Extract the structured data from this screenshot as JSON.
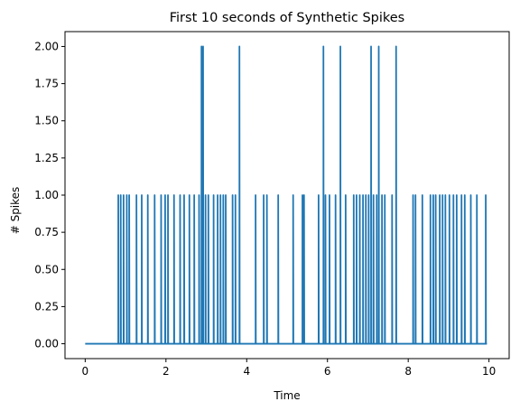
{
  "chart_data": {
    "type": "line",
    "title": "First 10 seconds of Synthetic Spikes",
    "xlabel": "Time",
    "ylabel": "# Spikes",
    "xlim": [
      -0.5,
      10.5
    ],
    "ylim": [
      -0.1,
      2.1
    ],
    "xticks": [
      0,
      2,
      4,
      6,
      8,
      10
    ],
    "xtick_labels": [
      "0",
      "2",
      "4",
      "6",
      "8",
      "10"
    ],
    "yticks": [
      0,
      0.25,
      0.5,
      0.75,
      1.0,
      1.25,
      1.5,
      1.75,
      2.0
    ],
    "ytick_labels": [
      "0.00",
      "0.25",
      "0.50",
      "0.75",
      "1.00",
      "1.25",
      "1.50",
      "1.75",
      "2.00"
    ],
    "grid": false,
    "x_range": [
      0,
      9.95
    ],
    "baseline": 0,
    "series_color": "#1f77b4",
    "spikes": [
      {
        "t": 0.82,
        "n": 1
      },
      {
        "t": 0.88,
        "n": 1
      },
      {
        "t": 0.95,
        "n": 1
      },
      {
        "t": 1.03,
        "n": 1
      },
      {
        "t": 1.09,
        "n": 1
      },
      {
        "t": 1.27,
        "n": 1
      },
      {
        "t": 1.4,
        "n": 1
      },
      {
        "t": 1.55,
        "n": 1
      },
      {
        "t": 1.72,
        "n": 1
      },
      {
        "t": 1.88,
        "n": 1
      },
      {
        "t": 1.98,
        "n": 1
      },
      {
        "t": 2.05,
        "n": 1
      },
      {
        "t": 2.2,
        "n": 1
      },
      {
        "t": 2.35,
        "n": 1
      },
      {
        "t": 2.45,
        "n": 1
      },
      {
        "t": 2.58,
        "n": 1
      },
      {
        "t": 2.7,
        "n": 1
      },
      {
        "t": 2.82,
        "n": 1
      },
      {
        "t": 2.88,
        "n": 2
      },
      {
        "t": 2.92,
        "n": 2
      },
      {
        "t": 2.98,
        "n": 1
      },
      {
        "t": 3.05,
        "n": 1
      },
      {
        "t": 3.18,
        "n": 1
      },
      {
        "t": 3.28,
        "n": 1
      },
      {
        "t": 3.35,
        "n": 1
      },
      {
        "t": 3.42,
        "n": 1
      },
      {
        "t": 3.48,
        "n": 1
      },
      {
        "t": 3.65,
        "n": 1
      },
      {
        "t": 3.72,
        "n": 1
      },
      {
        "t": 3.82,
        "n": 2
      },
      {
        "t": 4.22,
        "n": 1
      },
      {
        "t": 4.42,
        "n": 1
      },
      {
        "t": 4.5,
        "n": 1
      },
      {
        "t": 4.78,
        "n": 1
      },
      {
        "t": 5.15,
        "n": 1
      },
      {
        "t": 5.38,
        "n": 1
      },
      {
        "t": 5.42,
        "n": 1
      },
      {
        "t": 5.78,
        "n": 1
      },
      {
        "t": 5.9,
        "n": 2
      },
      {
        "t": 5.95,
        "n": 1
      },
      {
        "t": 6.05,
        "n": 1
      },
      {
        "t": 6.2,
        "n": 1
      },
      {
        "t": 6.32,
        "n": 2
      },
      {
        "t": 6.45,
        "n": 1
      },
      {
        "t": 6.65,
        "n": 1
      },
      {
        "t": 6.72,
        "n": 1
      },
      {
        "t": 6.8,
        "n": 1
      },
      {
        "t": 6.88,
        "n": 1
      },
      {
        "t": 6.95,
        "n": 1
      },
      {
        "t": 7.02,
        "n": 1
      },
      {
        "t": 7.08,
        "n": 2
      },
      {
        "t": 7.14,
        "n": 1
      },
      {
        "t": 7.22,
        "n": 1
      },
      {
        "t": 7.27,
        "n": 2
      },
      {
        "t": 7.35,
        "n": 1
      },
      {
        "t": 7.42,
        "n": 1
      },
      {
        "t": 7.6,
        "n": 1
      },
      {
        "t": 7.7,
        "n": 2
      },
      {
        "t": 8.12,
        "n": 1
      },
      {
        "t": 8.18,
        "n": 1
      },
      {
        "t": 8.35,
        "n": 1
      },
      {
        "t": 8.55,
        "n": 1
      },
      {
        "t": 8.62,
        "n": 1
      },
      {
        "t": 8.68,
        "n": 1
      },
      {
        "t": 8.78,
        "n": 1
      },
      {
        "t": 8.85,
        "n": 1
      },
      {
        "t": 8.92,
        "n": 1
      },
      {
        "t": 9.02,
        "n": 1
      },
      {
        "t": 9.12,
        "n": 1
      },
      {
        "t": 9.2,
        "n": 1
      },
      {
        "t": 9.32,
        "n": 1
      },
      {
        "t": 9.4,
        "n": 1
      },
      {
        "t": 9.55,
        "n": 1
      },
      {
        "t": 9.7,
        "n": 1
      },
      {
        "t": 9.92,
        "n": 1
      }
    ]
  }
}
